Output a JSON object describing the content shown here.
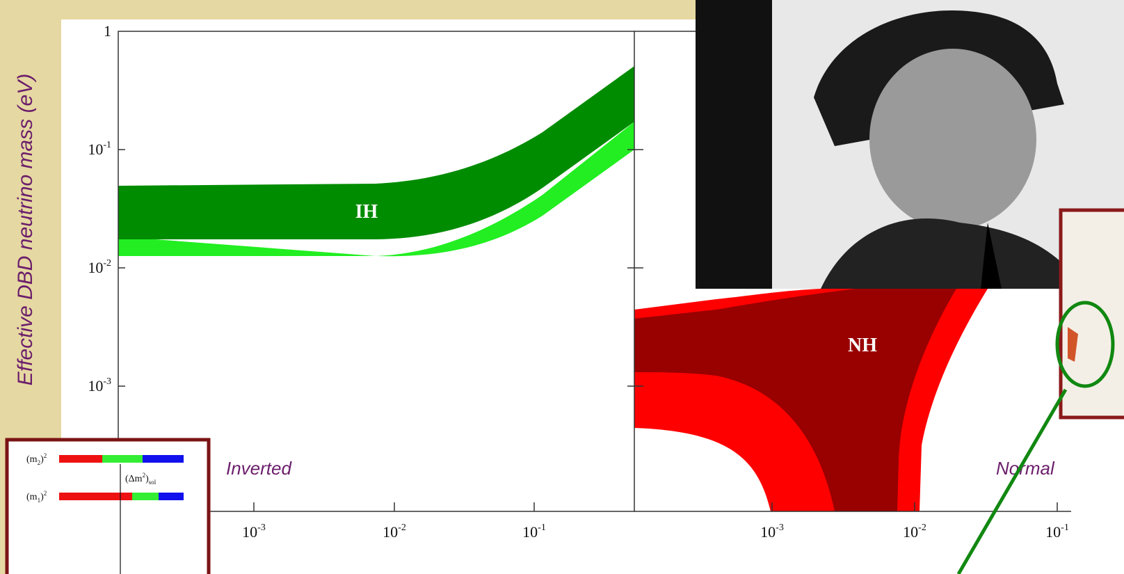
{
  "y_axis_label": "Effective DBD neutrino mass (eV)",
  "left_panel": {
    "yticks": [
      {
        "base": "1"
      },
      {
        "base": "10",
        "exponent": "-1"
      },
      {
        "base": "10",
        "exponent": "-2"
      },
      {
        "base": "10",
        "exponent": "-3"
      }
    ],
    "xticks": [
      {
        "base": "10",
        "exponent": "-3"
      },
      {
        "base": "10",
        "exponent": "-2"
      },
      {
        "base": "10",
        "exponent": "-1"
      }
    ],
    "band_label": "IH",
    "caption": "Inverted"
  },
  "right_panel": {
    "xticks": [
      {
        "base": "10",
        "exponent": "-3"
      },
      {
        "base": "10",
        "exponent": "-2"
      },
      {
        "base": "10",
        "exponent": "-1"
      }
    ],
    "band_label": "NH",
    "caption": "Normal"
  },
  "inset": {
    "upper": [
      "(m",
      "2",
      ")",
      "2"
    ],
    "gap": [
      "(Δm",
      "2",
      ")",
      "sol"
    ],
    "lower": [
      "(m",
      "1",
      ")",
      "2"
    ]
  }
}
